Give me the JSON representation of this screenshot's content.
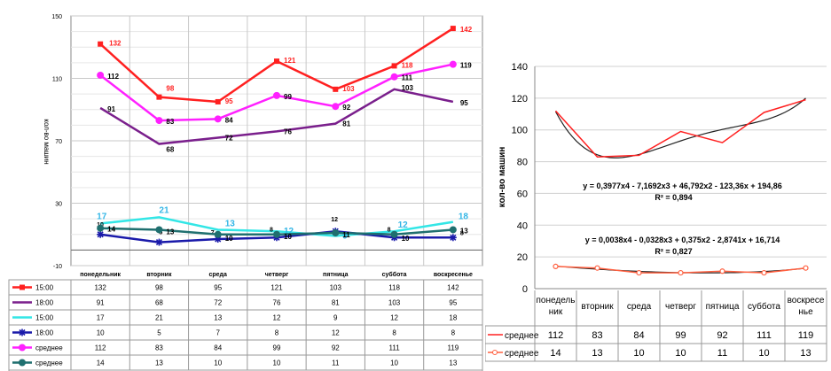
{
  "chart_data": [
    {
      "type": "line",
      "title": "",
      "xlabel": "",
      "ylabel": "кол-во машин",
      "ylim": [
        -10,
        150
      ],
      "yticks": [
        "150",
        "110",
        "70",
        "30",
        "-10"
      ],
      "grid": true,
      "legend": "table-below",
      "categories": [
        "понедельник",
        "вторник",
        "среда",
        "четверг",
        "пятница",
        "суббота",
        "воскресенье"
      ],
      "series": [
        {
          "name": "15:00",
          "color": "#ff2020",
          "marker": "square",
          "values": [
            132,
            98,
            95,
            121,
            103,
            118,
            142
          ]
        },
        {
          "name": "18:00",
          "color": "#7a1f8c",
          "marker": "none",
          "values": [
            91,
            68,
            72,
            76,
            81,
            103,
            95
          ]
        },
        {
          "name": "15:00",
          "color": "#33e6e6",
          "marker": "none",
          "values": [
            17,
            21,
            13,
            12,
            9,
            12,
            18
          ]
        },
        {
          "name": "18:00",
          "color": "#1a1aaa",
          "marker": "star",
          "values": [
            10,
            5,
            7,
            8,
            12,
            8,
            8
          ]
        },
        {
          "name": "среднее",
          "color": "#ff20ff",
          "marker": "circle",
          "values": [
            112,
            83,
            84,
            99,
            92,
            111,
            119
          ]
        },
        {
          "name": "среднее",
          "color": "#1f6f6f",
          "marker": "circle",
          "values": [
            14,
            13,
            10,
            10,
            11,
            10,
            13
          ]
        }
      ]
    },
    {
      "type": "line",
      "title": "",
      "xlabel": "",
      "ylabel": "кол-во машин",
      "ylim": [
        0,
        140
      ],
      "yticks": [
        "140",
        "120",
        "100",
        "80",
        "60",
        "40",
        "20",
        "0"
      ],
      "grid": true,
      "legend": "table-below",
      "categories": [
        "понедель ник",
        "вторник",
        "среда",
        "четверг",
        "пятница",
        "суббота",
        "воскресе нье"
      ],
      "series": [
        {
          "name": "среднее",
          "color": "#ff2020",
          "marker": "none",
          "values": [
            112,
            83,
            84,
            99,
            92,
            111,
            119
          ]
        },
        {
          "name": "среднее",
          "color": "#ff6040",
          "marker": "circle",
          "values": [
            14,
            13,
            10,
            10,
            11,
            10,
            13
          ]
        }
      ],
      "trendlines": [
        {
          "equation": "y = 0,3977x4 - 7,1692x3 + 46,792x2 - 123,36x + 194,86",
          "r2": "R² = 0,894",
          "coef": [
            194.86,
            -123.36,
            46.792,
            -7.1692,
            0.3977
          ]
        },
        {
          "equation": "y = 0,0038x4 - 0,0328x3 + 0,375x2 - 2,8741x + 16,714",
          "r2": "R² = 0,827",
          "coef": [
            16.714,
            -2.8741,
            0.375,
            -0.0328,
            0.0038
          ]
        }
      ]
    }
  ]
}
